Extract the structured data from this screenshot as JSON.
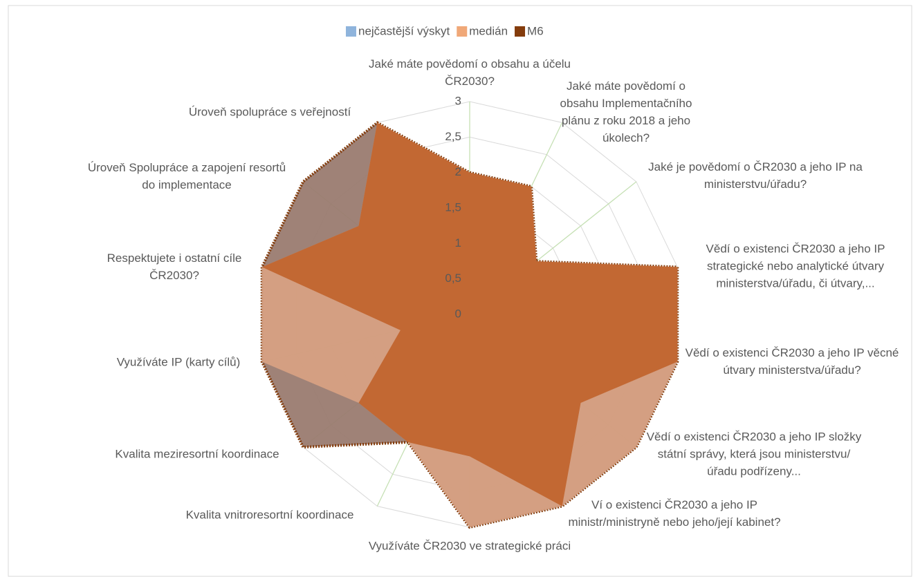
{
  "chart_data": {
    "type": "radar",
    "categories": [
      "Jaké máte povědomí o obsahu a účelu ČR2030?",
      "Jaké máte povědomí o obsahu Implementačního plánu z roku 2018 a jeho úkolech?",
      "Jaké je povědomí o ČR2030 a jeho IP na ministerstvu/úřadu?",
      "Vědí o existenci ČR2030 a jeho IP strategické nebo analytické útvary ministerstva/úřadu, či útvary,...",
      "Vědí o existenci ČR2030 a jeho IP věcné útvary ministerstva/úřadu?",
      "Vědí o existenci ČR2030 a jeho IP složky státní správy, která jsou ministerstvu/úřadu podřízeny...",
      "Ví o existenci ČR2030 a jeho IP ministr/ministryně nebo jeho/její kabinet?",
      "Využíváte ČR2030 ve strategické práci",
      "Kvalita vnitroresortní koordinace",
      "Kvalita meziresortní koordinace",
      "Využíváte IP (karty cílů)",
      "Respektujete i ostatní cíle ČR2030?",
      "Úroveň Spolupráce a zapojení resortů do implementace",
      "Úroveň spolupráce s veřejností"
    ],
    "series": [
      {
        "name": "nejčastější výskyt",
        "color": "#8fb4dc",
        "fill": "#c0622a",
        "values": [
          2,
          2,
          1.2,
          3,
          3,
          2,
          3,
          2,
          2,
          2,
          1,
          3,
          2,
          3
        ]
      },
      {
        "name": "medián",
        "color": "#f0a878",
        "fill": "#d9a283",
        "values": [
          2,
          2,
          1.2,
          3,
          3,
          3,
          3,
          3,
          2,
          2,
          3,
          3,
          2,
          3
        ]
      },
      {
        "name": "M6",
        "color": "#843c0c",
        "fill": "#9a7b70",
        "values": [
          2,
          2,
          1.2,
          3,
          3,
          3,
          3,
          3,
          2,
          3,
          3,
          3,
          3,
          3
        ]
      }
    ],
    "ylim": [
      0,
      3
    ],
    "yticks": [
      0,
      {
        "value": 0.5,
        "label": "0,5"
      },
      1,
      {
        "value": 1.5,
        "label": "1,5"
      },
      2,
      {
        "value": 2.5,
        "label": "2,5"
      },
      3
    ],
    "grid": true,
    "legend": "top"
  }
}
